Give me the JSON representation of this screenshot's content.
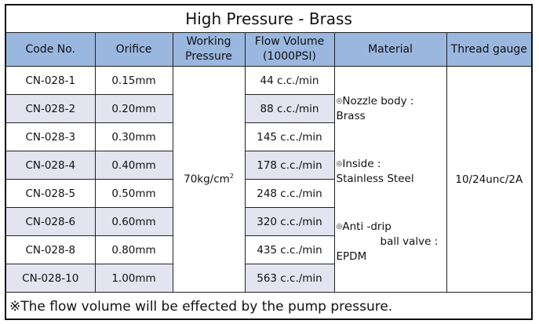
{
  "title": "High Pressure - Brass",
  "headers": {
    "code": "Code No.",
    "orifice": "Orifice",
    "working_line1": "Working",
    "working_line2": "Pressure",
    "flow_line1": "Flow Volume",
    "flow_line2": "(1000PSI)",
    "material": "Material",
    "thread": "Thread gauge"
  },
  "rows": [
    {
      "code": "CN-028-1",
      "orifice": "0.15mm",
      "flow": "44 c.c./min"
    },
    {
      "code": "CN-028-2",
      "orifice": "0.20mm",
      "flow": "88 c.c./min"
    },
    {
      "code": "CN-028-3",
      "orifice": "0.30mm",
      "flow": "145 c.c./min"
    },
    {
      "code": "CN-028-4",
      "orifice": "0.40mm",
      "flow": "178 c.c./min"
    },
    {
      "code": "CN-028-5",
      "orifice": "0.50mm",
      "flow": "248 c.c./min"
    },
    {
      "code": "CN-028-6",
      "orifice": "0.60mm",
      "flow": "320 c.c./min"
    },
    {
      "code": "CN-028-8",
      "orifice": "0.80mm",
      "flow": "435 c.c./min"
    },
    {
      "code": "CN-028-10",
      "orifice": "1.00mm",
      "flow": "563 c.c./min"
    }
  ],
  "working_pressure": "70kg/cm",
  "working_pressure_sup": "2",
  "material": {
    "bullet": "◎",
    "nozzle_label": "Nozzle body :",
    "nozzle_value": "Brass",
    "inside_label": "Inside :",
    "inside_value": "Stainless Steel",
    "antidrip_label": "Anti -drip",
    "antidrip_label2": "ball valve :",
    "antidrip_value": "EPDM"
  },
  "thread_gauge": "10/24unc/2A",
  "note": "※The flow volume will be effected by the pump pressure.",
  "colors": {
    "header_bg": "#9ab7df",
    "alt_row_bg": "#e4e3f0"
  }
}
